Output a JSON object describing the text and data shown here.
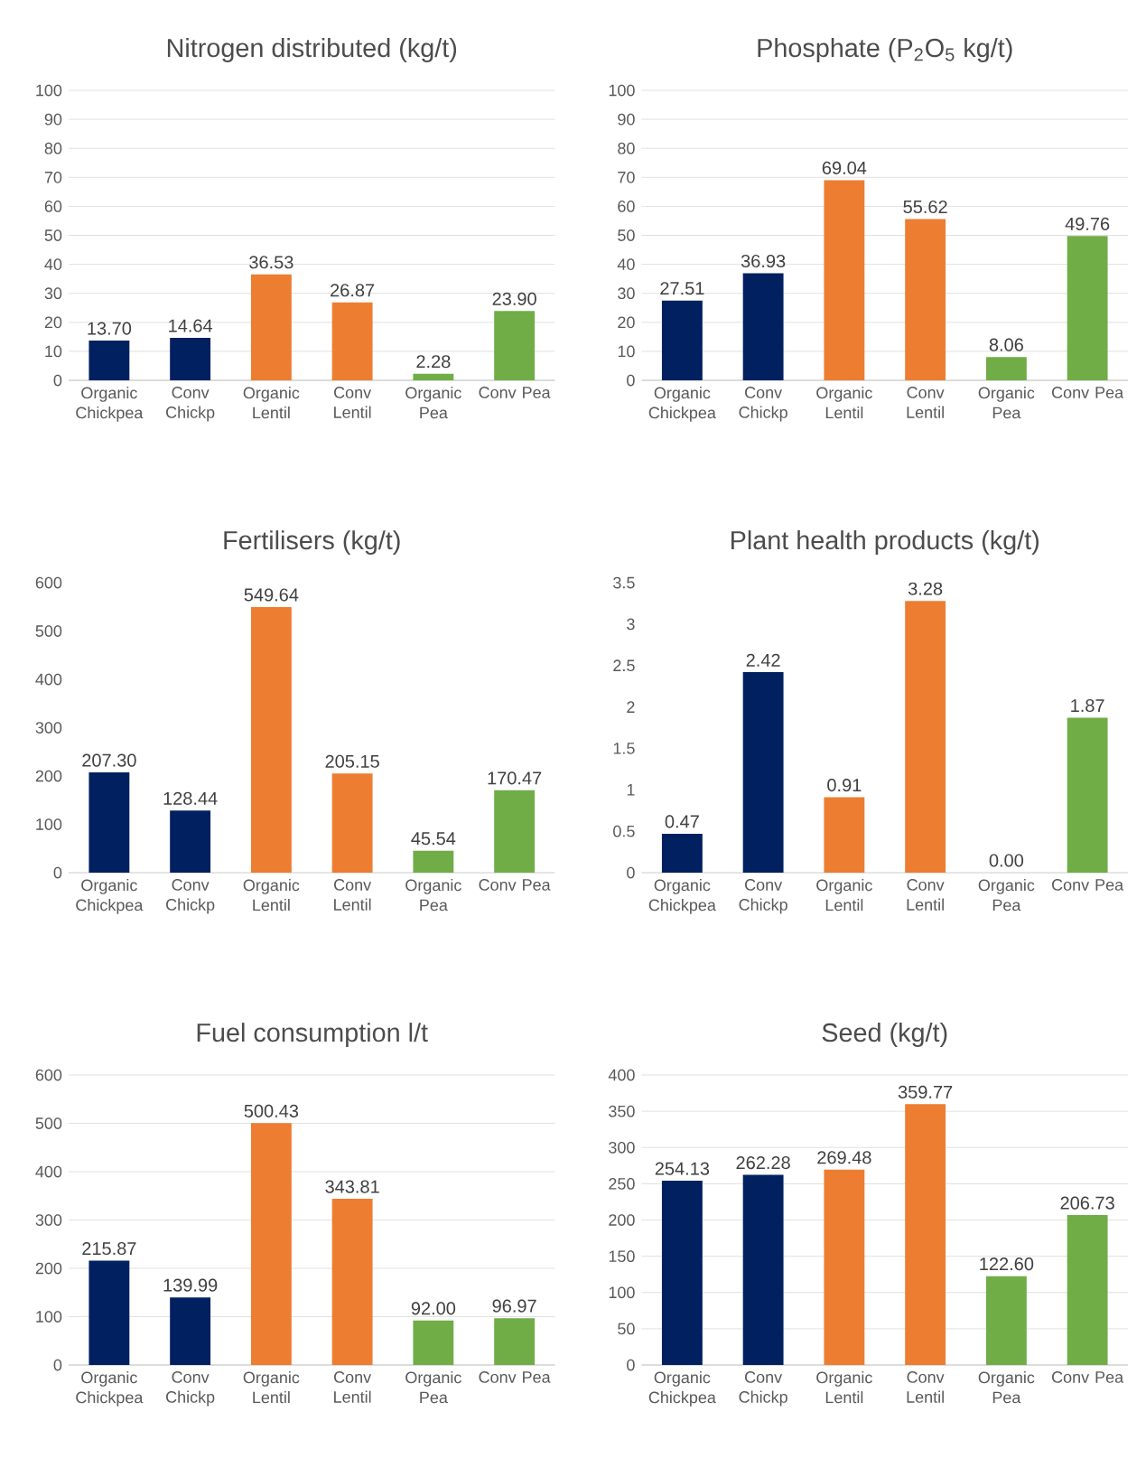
{
  "chart_data": [
    {
      "type": "bar",
      "title": "Nitrogen distributed (kg/t)",
      "categories": [
        "Organic Chickpea",
        "Conv Chickp",
        "Organic Lentil",
        "Conv Lentil",
        "Organic Pea",
        "Conv Pea"
      ],
      "values": [
        13.7,
        14.64,
        36.53,
        26.87,
        2.28,
        23.9
      ],
      "value_labels": [
        "13.70",
        "14.64",
        "36.53",
        "26.87",
        "2.28",
        "23.90"
      ],
      "colors": [
        "#002060",
        "#002060",
        "#ed7d31",
        "#ed7d31",
        "#70ad47",
        "#70ad47"
      ],
      "ylim": [
        0,
        100
      ],
      "yticks": [
        0,
        10,
        20,
        30,
        40,
        50,
        60,
        70,
        80,
        90,
        100
      ],
      "grid": "y"
    },
    {
      "type": "bar",
      "title": "Phosphate (P$_{2}$O$_{5}$ kg/t)",
      "categories": [
        "Organic Chickpea",
        "Conv Chickp",
        "Organic Lentil",
        "Conv Lentil",
        "Organic Pea",
        "Conv Pea"
      ],
      "values": [
        27.51,
        36.93,
        69.04,
        55.62,
        8.06,
        49.76
      ],
      "value_labels": [
        "27.51",
        "36.93",
        "69.04",
        "55.62",
        "8.06",
        "49.76"
      ],
      "colors": [
        "#002060",
        "#002060",
        "#ed7d31",
        "#ed7d31",
        "#70ad47",
        "#70ad47"
      ],
      "ylim": [
        0,
        100
      ],
      "yticks": [
        0,
        10,
        20,
        30,
        40,
        50,
        60,
        70,
        80,
        90,
        100
      ],
      "grid": "y"
    },
    {
      "type": "bar",
      "title": "Fertilisers (kg/t)",
      "categories": [
        "Organic Chickpea",
        "Conv Chickp",
        "Organic Lentil",
        "Conv Lentil",
        "Organic Pea",
        "Conv Pea"
      ],
      "values": [
        207.3,
        128.44,
        549.64,
        205.15,
        45.54,
        170.47
      ],
      "value_labels": [
        "207.30",
        "128.44",
        "549.64",
        "205.15",
        "45.54",
        "170.47"
      ],
      "colors": [
        "#002060",
        "#002060",
        "#ed7d31",
        "#ed7d31",
        "#70ad47",
        "#70ad47"
      ],
      "ylim": [
        0,
        600
      ],
      "yticks": [
        0,
        100,
        200,
        300,
        400,
        500,
        600
      ]
    },
    {
      "type": "bar",
      "title": "Plant health products (kg/t)",
      "categories": [
        "Organic Chickpea",
        "Conv Chickp",
        "Organic Lentil",
        "Conv Lentil",
        "Organic Pea",
        "Conv Pea"
      ],
      "values": [
        0.47,
        2.42,
        0.91,
        3.28,
        0.0,
        1.87
      ],
      "value_labels": [
        "0.47",
        "2.42",
        "0.91",
        "3.28",
        "0.00",
        "1.87"
      ],
      "colors": [
        "#002060",
        "#002060",
        "#ed7d31",
        "#ed7d31",
        "#70ad47",
        "#70ad47"
      ],
      "ylim": [
        0,
        3.5
      ],
      "yticks": [
        0,
        0.5,
        1,
        1.5,
        2,
        2.5,
        3,
        3.5
      ]
    },
    {
      "type": "bar",
      "title": "Fuel consumption l/t",
      "categories": [
        "Organic Chickpea",
        "Conv Chickp",
        "Organic Lentil",
        "Conv Lentil",
        "Organic Pea",
        "Conv Pea"
      ],
      "values": [
        215.87,
        139.99,
        500.43,
        343.81,
        92.0,
        96.97
      ],
      "value_labels": [
        "215.87",
        "139.99",
        "500.43",
        "343.81",
        "92.00",
        "96.97"
      ],
      "colors": [
        "#002060",
        "#002060",
        "#ed7d31",
        "#ed7d31",
        "#70ad47",
        "#70ad47"
      ],
      "ylim": [
        0,
        600
      ],
      "yticks": [
        0,
        100,
        200,
        300,
        400,
        500,
        600
      ],
      "grid": "y"
    },
    {
      "type": "bar",
      "title": "Seed (kg/t)",
      "categories": [
        "Organic Chickpea",
        "Conv Chickp",
        "Organic Lentil",
        "Conv Lentil",
        "Organic Pea",
        "Conv Pea"
      ],
      "values": [
        254.13,
        262.28,
        269.48,
        359.77,
        122.6,
        206.73
      ],
      "value_labels": [
        "254.13",
        "262.28",
        "269.48",
        "359.77",
        "122.60",
        "206.73"
      ],
      "colors": [
        "#002060",
        "#002060",
        "#ed7d31",
        "#ed7d31",
        "#70ad47",
        "#70ad47"
      ],
      "ylim": [
        0,
        400
      ],
      "yticks": [
        0,
        50,
        100,
        150,
        200,
        250,
        300,
        350,
        400
      ],
      "grid": "y"
    }
  ]
}
